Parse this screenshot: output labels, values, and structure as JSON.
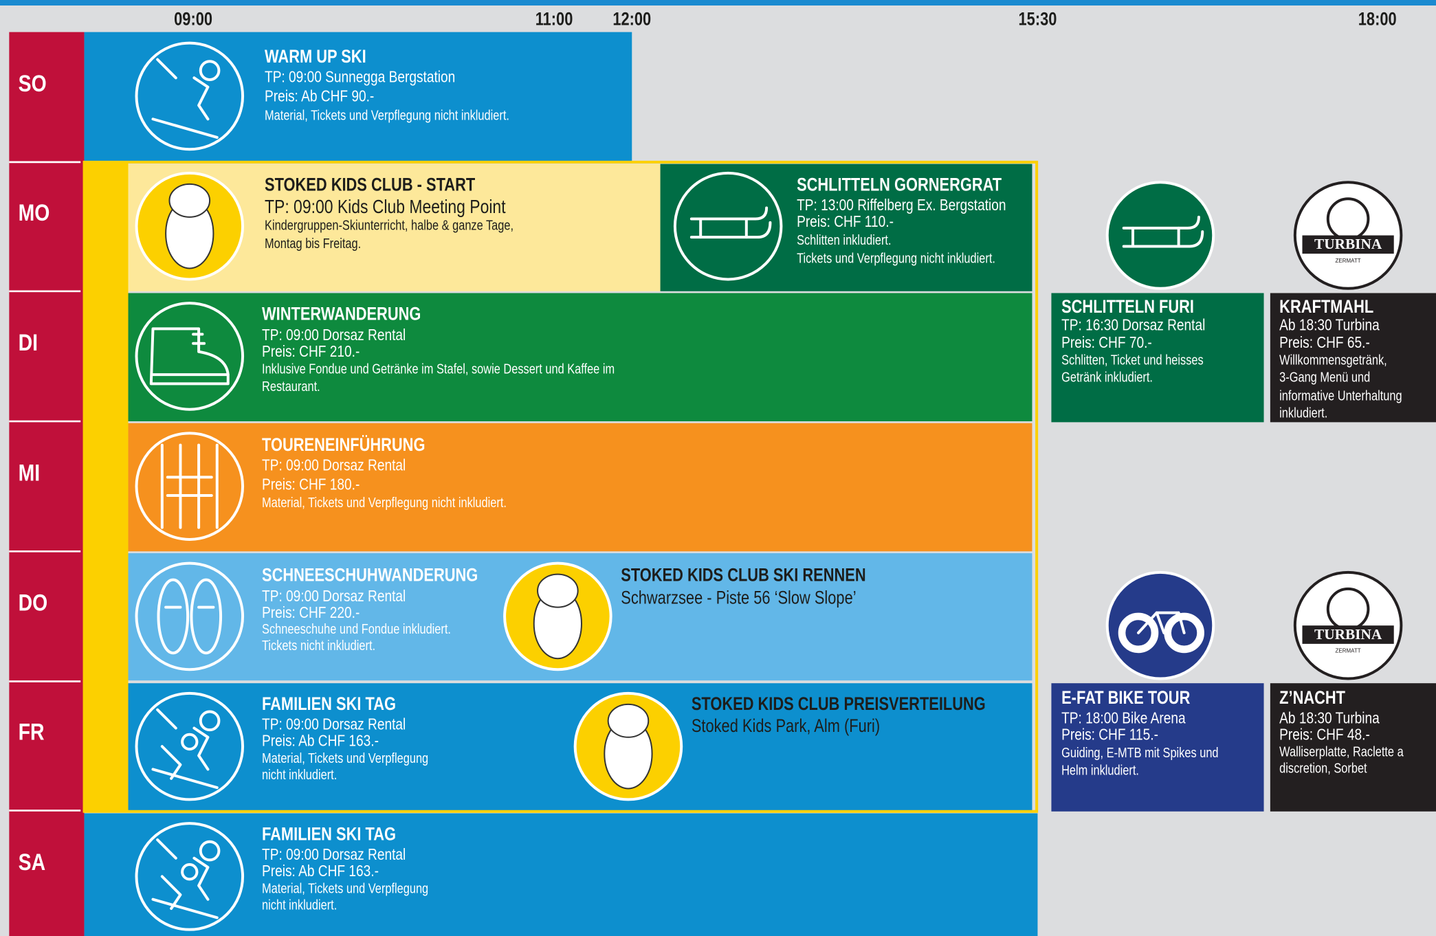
{
  "header": {
    "times": [
      "09:00",
      "11:00",
      "12:00",
      "15:30",
      "18:00"
    ]
  },
  "days": [
    "SO",
    "MO",
    "DI",
    "MI",
    "DO",
    "FR",
    "SA"
  ],
  "logo": {
    "name": "TURBINA",
    "sub": "ZERMATT"
  },
  "events": [
    {
      "title": "WARM UP SKI",
      "lines": [
        "TP: 09:00 Sunnegga Bergstation",
        "Preis: Ab CHF 90.-",
        "Material, Tickets und Verpflegung nicht inkludiert."
      ]
    },
    {
      "title": "STOKED KIDS CLUB - START",
      "lines": [
        "TP: 09:00 Kids Club Meeting Point",
        "Kindergruppen-Skiunterricht, halbe & ganze Tage,",
        "Montag bis Freitag."
      ]
    },
    {
      "title": "SCHLITTELN GORNERGRAT",
      "lines": [
        "TP: 13:00 Riffelberg Ex. Bergstation",
        "Preis: CHF 110.-",
        "Schlitten inkludiert.",
        "Tickets und Verpflegung nicht inkludiert."
      ]
    },
    {
      "title": "WINTERWANDERUNG",
      "lines": [
        "TP: 09:00 Dorsaz Rental",
        "Preis: CHF 210.-",
        "Inklusive Fondue und Getränke im Stafel, sowie Dessert und Kaffee im",
        "Restaurant."
      ]
    },
    {
      "title": "TOURENEINFÜHRUNG",
      "lines": [
        "TP: 09:00 Dorsaz Rental",
        "Preis: CHF 180.-",
        "Material, Tickets und Verpflegung nicht inkludiert."
      ]
    },
    {
      "title": "SCHNEESCHUHWANDERUNG",
      "lines": [
        "TP: 09:00 Dorsaz Rental",
        "Preis: CHF 220.-",
        "Schneeschuhe und Fondue inkludiert.",
        "Tickets nicht inkludiert."
      ]
    },
    {
      "title": "STOKED KIDS CLUB SKI RENNEN",
      "lines": [
        "Schwarzsee - Piste 56 ‘Slow Slope’"
      ]
    },
    {
      "title": "FAMILIEN SKI TAG",
      "lines": [
        "TP: 09:00 Dorsaz Rental",
        "Preis: Ab CHF 163.-",
        "Material, Tickets und Verpflegung",
        "nicht inkludiert."
      ]
    },
    {
      "title": "STOKED KIDS CLUB PREISVERTEILUNG",
      "lines": [
        "Stoked Kids Park, Alm (Furi)"
      ]
    },
    {
      "title": "FAMILIEN SKI TAG",
      "lines": [
        "TP: 09:00 Dorsaz Rental",
        "Preis: Ab CHF 163.-",
        "Material, Tickets und Verpflegung",
        "nicht inkludiert."
      ]
    },
    {
      "title": "SCHLITTELN FURI",
      "lines": [
        "TP: 16:30 Dorsaz Rental",
        "Preis: CHF 70.-",
        "Schlitten, Ticket und heisses",
        "Getränk inkludiert."
      ]
    },
    {
      "title": "KRAFTMAHL",
      "lines": [
        "Ab 18:30 Turbina",
        "Preis: CHF 65.-",
        "Willkommensgetränk,",
        "3-Gang Menü und",
        "informative Unterhaltung",
        "inkludiert."
      ]
    },
    {
      "title": "E-FAT BIKE TOUR",
      "lines": [
        "TP: 18:00 Bike Arena",
        "Preis: CHF 115.-",
        "Guiding, E-MTB mit Spikes und",
        "Helm inkludiert."
      ]
    },
    {
      "title": "Z’NACHT",
      "lines": [
        "Ab 18:30 Turbina",
        "Preis: CHF 48.-",
        "Walliserplatte, Raclette a",
        "discretion, Sorbet"
      ]
    }
  ]
}
